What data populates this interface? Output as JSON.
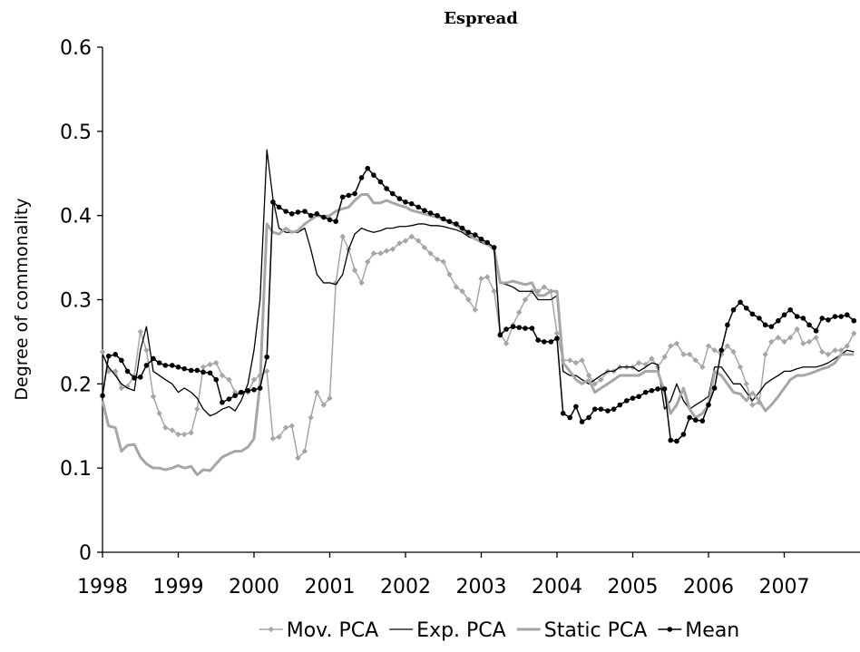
{
  "chart_data": {
    "type": "line",
    "title": "Espread",
    "y_label": "Degree of commonality",
    "x": [
      1998,
      1998.08,
      1998.17,
      1998.25,
      1998.33,
      1998.42,
      1998.5,
      1998.58,
      1998.67,
      1998.75,
      1998.83,
      1998.92,
      1999,
      1999.08,
      1999.17,
      1999.25,
      1999.33,
      1999.42,
      1999.5,
      1999.58,
      1999.67,
      1999.75,
      1999.83,
      1999.92,
      2000,
      2000.08,
      2000.17,
      2000.25,
      2000.33,
      2000.42,
      2000.5,
      2000.58,
      2000.67,
      2000.75,
      2000.83,
      2000.92,
      2001,
      2001.08,
      2001.17,
      2001.25,
      2001.33,
      2001.42,
      2001.5,
      2001.58,
      2001.67,
      2001.75,
      2001.83,
      2001.92,
      2002,
      2002.08,
      2002.17,
      2002.25,
      2002.33,
      2002.42,
      2002.5,
      2002.58,
      2002.67,
      2002.75,
      2002.83,
      2002.92,
      2003,
      2003.08,
      2003.17,
      2003.25,
      2003.33,
      2003.42,
      2003.5,
      2003.58,
      2003.67,
      2003.75,
      2003.83,
      2003.92,
      2004,
      2004.08,
      2004.17,
      2004.25,
      2004.33,
      2004.42,
      2004.5,
      2004.58,
      2004.67,
      2004.75,
      2004.83,
      2004.92,
      2005,
      2005.08,
      2005.17,
      2005.25,
      2005.33,
      2005.42,
      2005.5,
      2005.58,
      2005.67,
      2005.75,
      2005.83,
      2005.92,
      2006,
      2006.08,
      2006.17,
      2006.25,
      2006.33,
      2006.42,
      2006.5,
      2006.58,
      2006.67,
      2006.75,
      2006.83,
      2006.92,
      2007,
      2007.08,
      2007.17,
      2007.25,
      2007.33,
      2007.42,
      2007.5,
      2007.58,
      2007.67,
      2007.75,
      2007.83,
      2007.92
    ],
    "series": [
      {
        "name": "Mov. PCA",
        "color": "#a6a6a6",
        "line_width": 1.5,
        "marker": "diamond",
        "values": [
          0.238,
          0.215,
          0.215,
          0.195,
          0.197,
          0.21,
          0.262,
          0.24,
          0.185,
          0.165,
          0.148,
          0.145,
          0.14,
          0.14,
          0.142,
          0.17,
          0.22,
          0.223,
          0.225,
          0.21,
          0.205,
          0.19,
          0.19,
          0.19,
          0.205,
          0.21,
          0.215,
          0.135,
          0.137,
          0.148,
          0.15,
          0.112,
          0.12,
          0.16,
          0.19,
          0.175,
          0.183,
          0.32,
          0.375,
          0.36,
          0.335,
          0.32,
          0.345,
          0.355,
          0.355,
          0.358,
          0.36,
          0.367,
          0.37,
          0.375,
          0.37,
          0.362,
          0.355,
          0.348,
          0.345,
          0.33,
          0.315,
          0.31,
          0.3,
          0.288,
          0.325,
          0.327,
          0.31,
          0.26,
          0.248,
          0.27,
          0.285,
          0.3,
          0.31,
          0.31,
          0.315,
          0.31,
          0.26,
          0.228,
          0.228,
          0.225,
          0.228,
          0.21,
          0.2,
          0.205,
          0.215,
          0.215,
          0.22,
          0.22,
          0.22,
          0.225,
          0.223,
          0.23,
          0.22,
          0.232,
          0.245,
          0.248,
          0.235,
          0.235,
          0.228,
          0.22,
          0.245,
          0.24,
          0.235,
          0.245,
          0.238,
          0.22,
          0.2,
          0.175,
          0.178,
          0.235,
          0.25,
          0.255,
          0.25,
          0.255,
          0.265,
          0.248,
          0.25,
          0.255,
          0.238,
          0.235,
          0.24,
          0.24,
          0.245,
          0.26
        ]
      },
      {
        "name": "Exp. PCA",
        "color": "#000000",
        "line_width": 1.3,
        "marker": null,
        "values": [
          0.235,
          0.22,
          0.21,
          0.2,
          0.195,
          0.192,
          0.24,
          0.268,
          0.215,
          0.21,
          0.205,
          0.2,
          0.19,
          0.195,
          0.19,
          0.183,
          0.17,
          0.162,
          0.165,
          0.17,
          0.173,
          0.168,
          0.18,
          0.2,
          0.24,
          0.3,
          0.478,
          0.42,
          0.385,
          0.38,
          0.38,
          0.38,
          0.385,
          0.36,
          0.33,
          0.32,
          0.32,
          0.318,
          0.33,
          0.36,
          0.378,
          0.385,
          0.382,
          0.38,
          0.382,
          0.385,
          0.385,
          0.387,
          0.387,
          0.388,
          0.39,
          0.39,
          0.388,
          0.388,
          0.387,
          0.385,
          0.383,
          0.38,
          0.375,
          0.372,
          0.368,
          0.365,
          0.36,
          0.32,
          0.318,
          0.315,
          0.31,
          0.31,
          0.31,
          0.3,
          0.3,
          0.3,
          0.305,
          0.215,
          0.21,
          0.21,
          0.205,
          0.2,
          0.205,
          0.21,
          0.215,
          0.215,
          0.22,
          0.22,
          0.22,
          0.215,
          0.22,
          0.225,
          0.223,
          0.17,
          0.18,
          0.2,
          0.18,
          0.17,
          0.175,
          0.18,
          0.185,
          0.22,
          0.22,
          0.21,
          0.2,
          0.2,
          0.19,
          0.18,
          0.19,
          0.2,
          0.205,
          0.21,
          0.215,
          0.215,
          0.218,
          0.22,
          0.22,
          0.22,
          0.222,
          0.225,
          0.23,
          0.235,
          0.24,
          0.238
        ]
      },
      {
        "name": "Static PCA",
        "color": "#a6a6a6",
        "line_width": 3,
        "marker": null,
        "values": [
          0.18,
          0.15,
          0.148,
          0.12,
          0.127,
          0.128,
          0.113,
          0.105,
          0.1,
          0.1,
          0.098,
          0.1,
          0.103,
          0.1,
          0.102,
          0.092,
          0.098,
          0.097,
          0.105,
          0.113,
          0.117,
          0.12,
          0.12,
          0.125,
          0.135,
          0.2,
          0.39,
          0.38,
          0.378,
          0.385,
          0.38,
          0.382,
          0.39,
          0.395,
          0.4,
          0.398,
          0.4,
          0.405,
          0.408,
          0.41,
          0.418,
          0.425,
          0.425,
          0.415,
          0.415,
          0.418,
          0.415,
          0.412,
          0.41,
          0.406,
          0.404,
          0.402,
          0.4,
          0.398,
          0.395,
          0.392,
          0.388,
          0.383,
          0.378,
          0.372,
          0.37,
          0.366,
          0.36,
          0.32,
          0.32,
          0.322,
          0.32,
          0.318,
          0.32,
          0.305,
          0.305,
          0.31,
          0.31,
          0.225,
          0.215,
          0.205,
          0.2,
          0.205,
          0.19,
          0.195,
          0.2,
          0.205,
          0.21,
          0.21,
          0.21,
          0.21,
          0.215,
          0.215,
          0.215,
          0.19,
          0.165,
          0.175,
          0.195,
          0.17,
          0.16,
          0.165,
          0.175,
          0.215,
          0.21,
          0.2,
          0.19,
          0.188,
          0.18,
          0.19,
          0.18,
          0.168,
          0.175,
          0.185,
          0.195,
          0.205,
          0.21,
          0.21,
          0.212,
          0.215,
          0.218,
          0.22,
          0.225,
          0.235,
          0.235,
          0.235
        ]
      },
      {
        "name": "Mean",
        "color": "#000000",
        "line_width": 1.5,
        "marker": "circle",
        "values": [
          0.186,
          0.233,
          0.235,
          0.228,
          0.215,
          0.207,
          0.208,
          0.222,
          0.23,
          0.225,
          0.222,
          0.222,
          0.22,
          0.218,
          0.216,
          0.216,
          0.214,
          0.213,
          0.205,
          0.178,
          0.182,
          0.186,
          0.19,
          0.192,
          0.193,
          0.195,
          0.232,
          0.416,
          0.41,
          0.405,
          0.402,
          0.404,
          0.405,
          0.4,
          0.402,
          0.398,
          0.395,
          0.393,
          0.422,
          0.424,
          0.426,
          0.445,
          0.456,
          0.448,
          0.44,
          0.432,
          0.426,
          0.42,
          0.416,
          0.414,
          0.41,
          0.406,
          0.403,
          0.4,
          0.396,
          0.393,
          0.39,
          0.385,
          0.38,
          0.377,
          0.372,
          0.368,
          0.362,
          0.258,
          0.265,
          0.268,
          0.267,
          0.266,
          0.266,
          0.252,
          0.25,
          0.25,
          0.254,
          0.165,
          0.16,
          0.173,
          0.155,
          0.16,
          0.17,
          0.17,
          0.168,
          0.17,
          0.175,
          0.18,
          0.183,
          0.185,
          0.19,
          0.192,
          0.194,
          0.194,
          0.133,
          0.132,
          0.14,
          0.16,
          0.157,
          0.156,
          0.175,
          0.195,
          0.24,
          0.27,
          0.288,
          0.297,
          0.29,
          0.283,
          0.278,
          0.27,
          0.268,
          0.275,
          0.282,
          0.288,
          0.28,
          0.278,
          0.27,
          0.263,
          0.278,
          0.276,
          0.28,
          0.28,
          0.282,
          0.275
        ]
      }
    ],
    "xlim": [
      1998,
      2008
    ],
    "xticks": [
      1998,
      1999,
      2000,
      2001,
      2002,
      2003,
      2004,
      2005,
      2006,
      2007
    ],
    "ylim": [
      0,
      0.6
    ],
    "yticks": [
      0,
      0.1,
      0.2,
      0.3,
      0.4,
      0.5,
      0.6
    ],
    "legend": "bottom"
  }
}
